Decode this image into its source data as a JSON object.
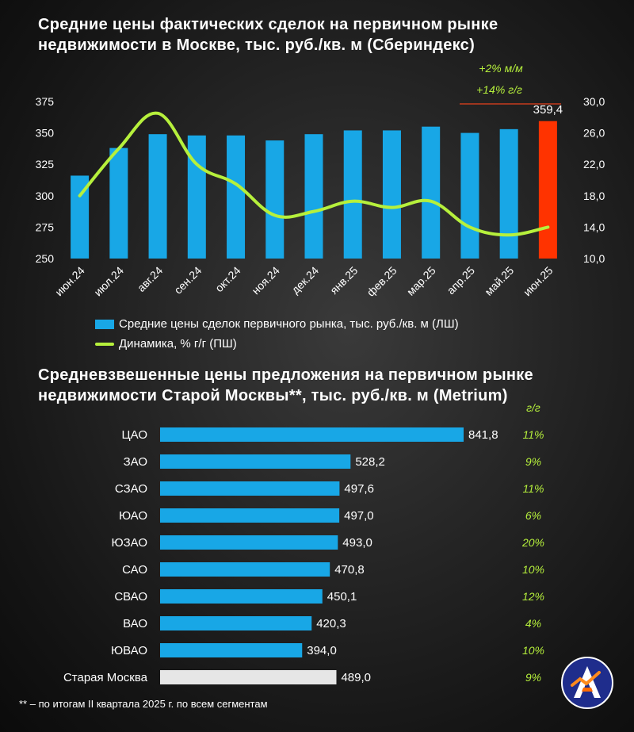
{
  "chart_data": [
    {
      "type": "bar+line",
      "title": "Средние цены фактических сделок на первичном рынке недвижимости в Москве, тыс. руб./кв. м (Сбериндекс)",
      "categories": [
        "июн.24",
        "июл.24",
        "авг.24",
        "сен.24",
        "окт.24",
        "ноя.24",
        "дек.24",
        "янв.25",
        "фев.25",
        "мар.25",
        "апр.25",
        "май.25",
        "июн.25"
      ],
      "series": [
        {
          "name": "Средние цены сделок первичного рынка, тыс. руб./кв. м (ЛШ)",
          "axis": "left",
          "kind": "bar",
          "values": [
            316,
            338,
            349,
            348,
            348,
            344,
            349,
            352,
            352,
            355,
            350,
            353,
            359.4
          ]
        },
        {
          "name": "Динамика, % г/г (ПШ)",
          "axis": "right",
          "kind": "line",
          "values": [
            18.0,
            24.0,
            28.5,
            22.0,
            19.5,
            15.5,
            16.0,
            17.3,
            16.5,
            17.3,
            14.0,
            13.0,
            14.0
          ]
        }
      ],
      "last_value_label": "359,4",
      "annotation_mm": "+2% м/м",
      "annotation_yy": "+14% г/г",
      "ylim_left": [
        250,
        375
      ],
      "yticks_left": [
        "250",
        "275",
        "300",
        "325",
        "350",
        "375"
      ],
      "ylim_right": [
        10,
        30
      ],
      "yticks_right": [
        "10,0",
        "14,0",
        "18,0",
        "22,0",
        "26,0",
        "30,0"
      ],
      "colors": {
        "bar": "#18a7e6",
        "bar_last": "#ff3300",
        "line": "#b6f03c",
        "accent_line": "#e8411c"
      }
    },
    {
      "type": "bar",
      "orientation": "horizontal",
      "title": "Средневзвешенные цены предложения на первичном рынке недвижимости Старой Москвы**, тыс. руб./кв. м (Metrium)",
      "yy_header": "г/г",
      "categories": [
        "ЦАО",
        "ЗАО",
        "СЗАО",
        "ЮАО",
        "ЮЗАО",
        "САО",
        "СВАО",
        "ВАО",
        "ЮВАО",
        "Старая Москва"
      ],
      "values": [
        841.8,
        528.2,
        497.6,
        497.0,
        493.0,
        470.8,
        450.1,
        420.3,
        394.0,
        489.0
      ],
      "value_labels": [
        "841,8",
        "528,2",
        "497,6",
        "497,0",
        "493,0",
        "470,8",
        "450,1",
        "420,3",
        "394,0",
        "489,0"
      ],
      "yy_labels": [
        "11%",
        "9%",
        "11%",
        "6%",
        "20%",
        "10%",
        "12%",
        "4%",
        "10%",
        "9%"
      ],
      "xlim": [
        0,
        841.8
      ],
      "colors": {
        "bar": "#18a7e6",
        "bar_total": "#e6e6e6",
        "yy_text": "#b6f03c"
      }
    }
  ],
  "footnote": "** – по итогам II квартала 2025 г. по всем сегментам",
  "logo_icon": "metrium-logo-icon"
}
